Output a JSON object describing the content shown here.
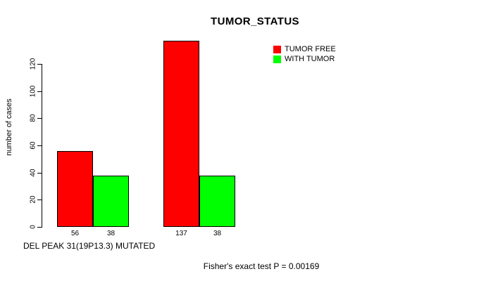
{
  "chart_data": {
    "type": "bar",
    "title": "TUMOR_STATUS",
    "ylabel": "number of cases",
    "xlabel": "DEL PEAK 31(19P13.3) MUTATED",
    "yticks": [
      0,
      20,
      40,
      60,
      80,
      100,
      120
    ],
    "ylim": [
      0,
      120
    ],
    "grid": false,
    "legend_position": "top-right",
    "series": [
      {
        "name": "TUMOR FREE",
        "color": "#ff0000",
        "values": [
          56,
          137
        ]
      },
      {
        "name": "WITH TUMOR",
        "color": "#00ff00",
        "values": [
          38,
          38
        ]
      }
    ]
  },
  "footnote": "Fisher's exact test P = 0.00169"
}
